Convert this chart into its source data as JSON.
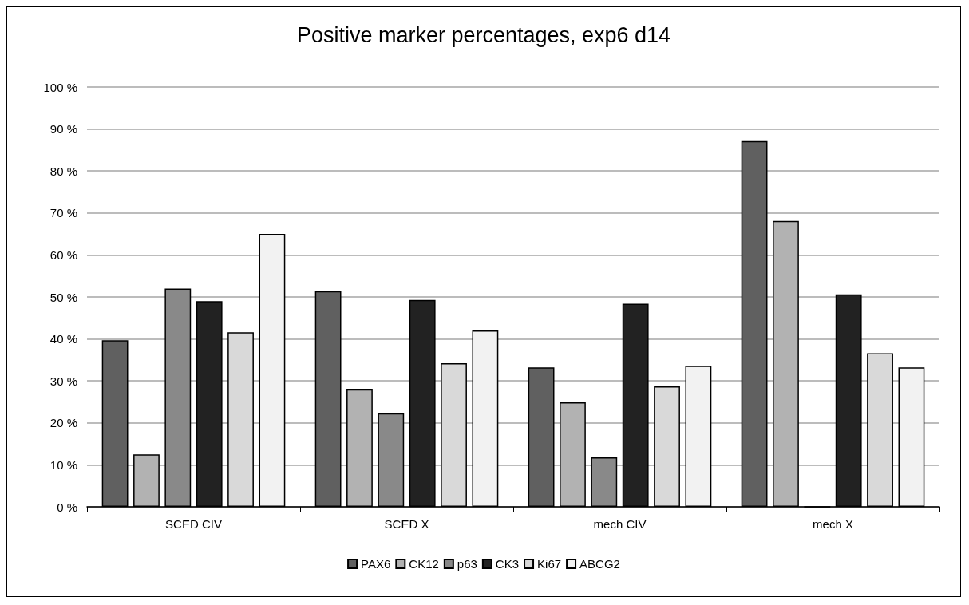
{
  "chart_data": {
    "type": "bar",
    "title": "Positive marker percentages, exp6 d14",
    "categories": [
      "SCED CIV",
      "SCED X",
      "mech CIV",
      "mech X"
    ],
    "series": [
      {
        "name": "PAX6",
        "color": "#606060",
        "values": [
          39.7,
          51.4,
          33.2,
          87.1
        ]
      },
      {
        "name": "CK12",
        "color": "#b2b2b2",
        "values": [
          12.5,
          28,
          24.9,
          68.1
        ]
      },
      {
        "name": "p63",
        "color": "#898989",
        "values": [
          52,
          22.3,
          11.8,
          0
        ]
      },
      {
        "name": "CK3",
        "color": "#222222",
        "values": [
          49,
          49.3,
          48.4,
          50.6
        ]
      },
      {
        "name": "Ki67",
        "color": "#d9d9d9",
        "values": [
          41.6,
          34.2,
          28.7,
          36.6
        ]
      },
      {
        "name": "ABCG2",
        "color": "#f2f2f2",
        "values": [
          65,
          42,
          33.6,
          33.2
        ]
      }
    ],
    "ylim": [
      0,
      100
    ],
    "yticks": [
      {
        "value": 0,
        "label": "0 %"
      },
      {
        "value": 10,
        "label": "10 %"
      },
      {
        "value": 20,
        "label": "20 %"
      },
      {
        "value": 30,
        "label": "30 %"
      },
      {
        "value": 40,
        "label": "40 %"
      },
      {
        "value": 50,
        "label": "50 %"
      },
      {
        "value": 60,
        "label": "60 %"
      },
      {
        "value": 70,
        "label": "70 %"
      },
      {
        "value": 80,
        "label": "80 %"
      },
      {
        "value": 90,
        "label": "90 %"
      },
      {
        "value": 100,
        "label": "100 %"
      }
    ],
    "grid": "y",
    "legend": "bottom"
  }
}
